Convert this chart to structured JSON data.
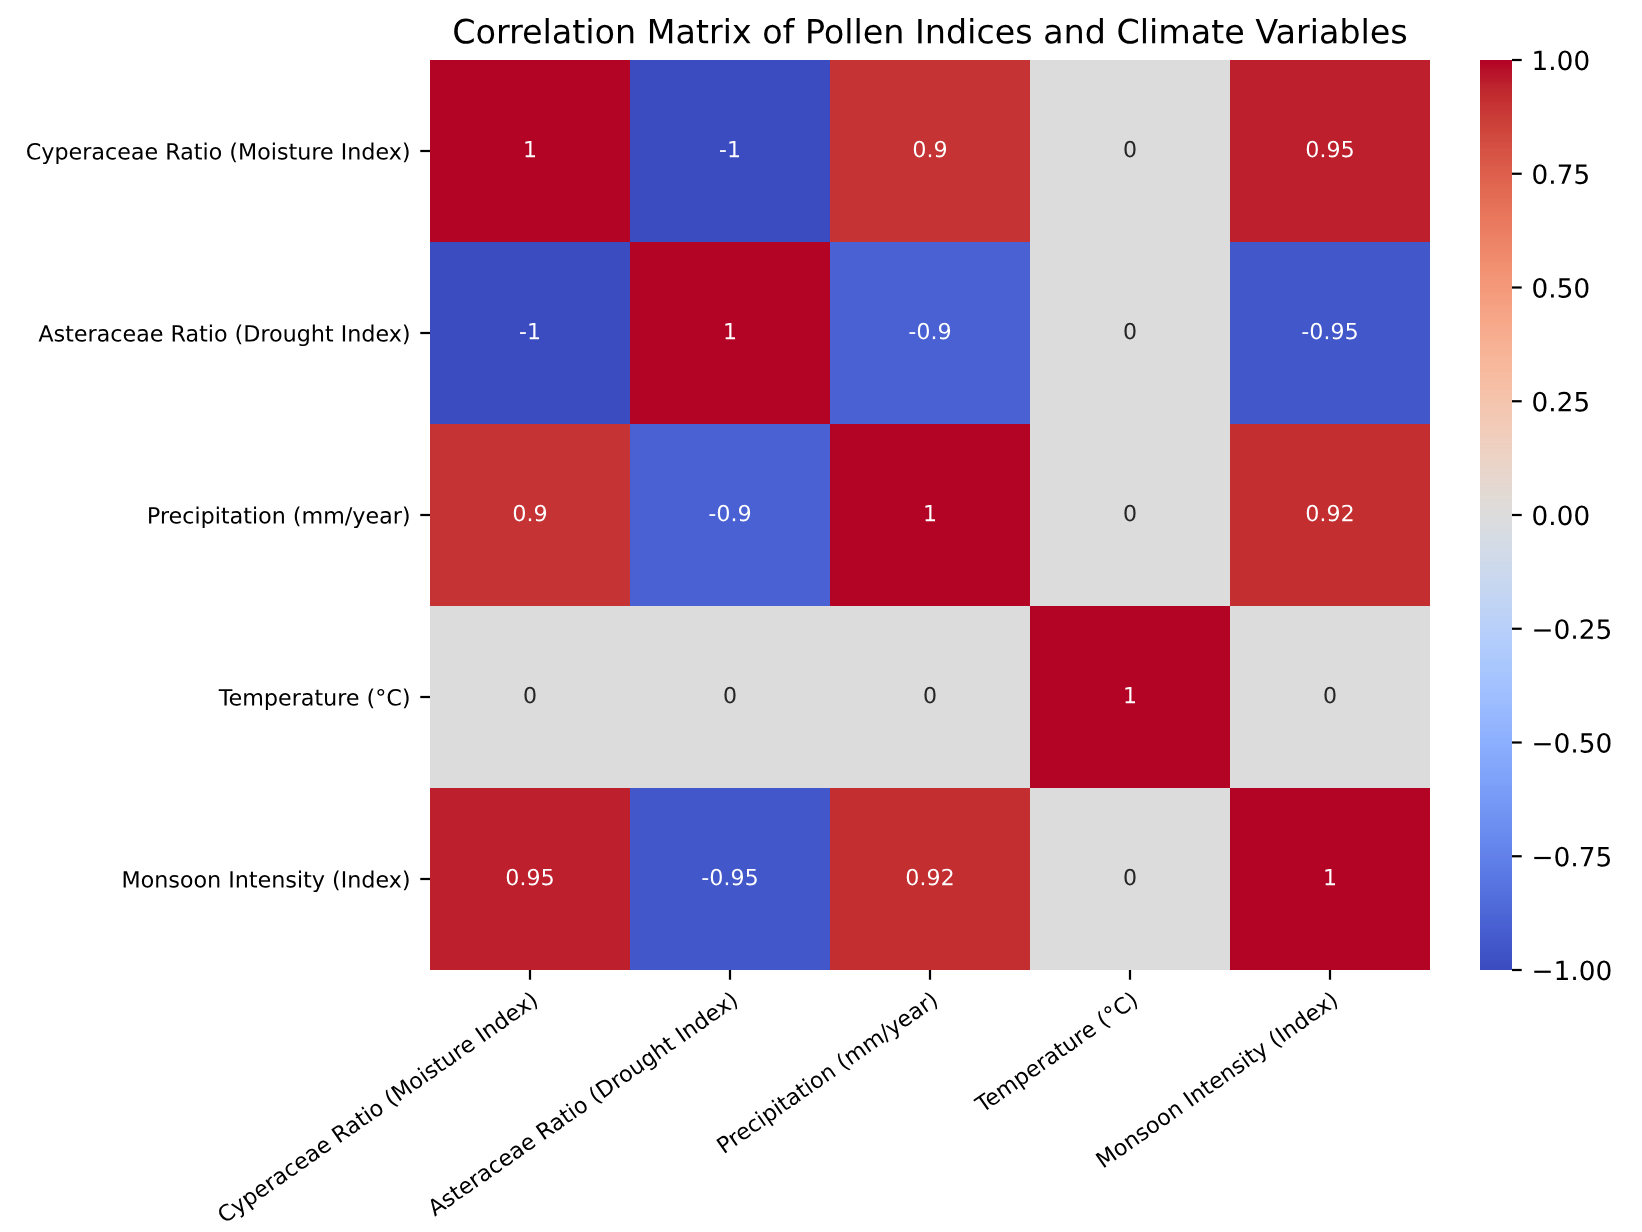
{
  "chart_data": {
    "type": "heatmap",
    "title": "Correlation Matrix of Pollen Indices and Climate Variables",
    "categories": [
      "Cyperaceae Ratio (Moisture Index)",
      "Asteraceae Ratio (Drought Index)",
      "Precipitation (mm/year)",
      "Temperature (°C)",
      "Monsoon Intensity (Index)"
    ],
    "y_categories": [
      "Cyperaceae Ratio (Moisture Index)",
      "Asteraceae Ratio (Drought Index)",
      "Precipitation (mm/year)",
      "Temperature (°C)",
      "Monsoon Intensity (Index)"
    ],
    "cells": [
      [
        1,
        -1,
        0.9,
        0,
        0.95
      ],
      [
        -1,
        1,
        -0.9,
        0,
        -0.95
      ],
      [
        0.9,
        -0.9,
        1,
        0,
        0.92
      ],
      [
        0,
        0,
        0,
        1,
        0
      ],
      [
        0.95,
        -0.95,
        0.92,
        0,
        1
      ]
    ],
    "clim": [
      -1,
      1
    ],
    "cticks": [
      {
        "value": -1,
        "label": "−1.00"
      },
      {
        "value": -0.75,
        "label": "−0.75"
      },
      {
        "value": -0.5,
        "label": "−0.50"
      },
      {
        "value": -0.25,
        "label": "−0.25"
      },
      {
        "value": 0,
        "label": "0.00"
      },
      {
        "value": 0.25,
        "label": "0.25"
      },
      {
        "value": 0.5,
        "label": "0.50"
      },
      {
        "value": 0.75,
        "label": "0.75"
      },
      {
        "value": 1,
        "label": "1.00"
      }
    ],
    "data_labels": true
  }
}
